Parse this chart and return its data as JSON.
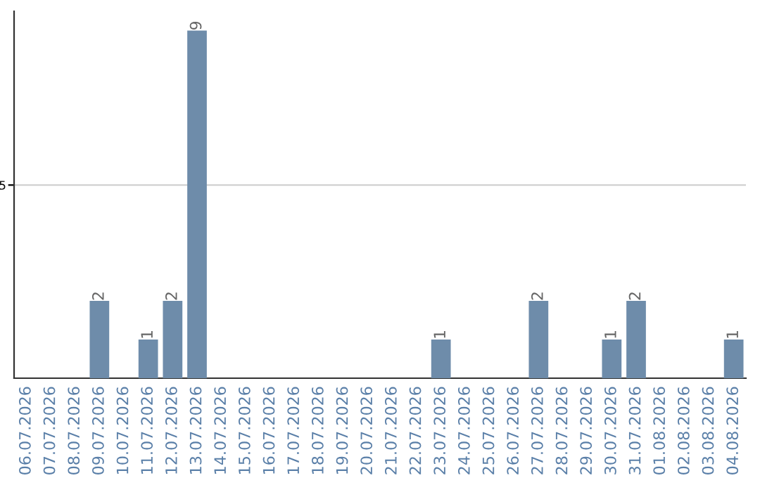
{
  "chart_data": {
    "type": "bar",
    "categories": [
      "06.07.2026",
      "07.07.2026",
      "08.07.2026",
      "09.07.2026",
      "10.07.2026",
      "11.07.2026",
      "12.07.2026",
      "13.07.2026",
      "14.07.2026",
      "15.07.2026",
      "16.07.2026",
      "17.07.2026",
      "18.07.2026",
      "19.07.2026",
      "20.07.2026",
      "21.07.2026",
      "22.07.2026",
      "23.07.2026",
      "24.07.2026",
      "25.07.2026",
      "26.07.2026",
      "27.07.2026",
      "28.07.2026",
      "29.07.2026",
      "30.07.2026",
      "31.07.2026",
      "01.08.2026",
      "02.08.2026",
      "03.08.2026",
      "04.08.2026"
    ],
    "values": [
      0,
      0,
      0,
      2,
      0,
      1,
      2,
      9,
      0,
      0,
      0,
      0,
      0,
      0,
      0,
      0,
      0,
      1,
      0,
      0,
      0,
      2,
      0,
      0,
      1,
      2,
      0,
      0,
      0,
      1
    ],
    "value_labels": [
      null,
      null,
      null,
      "2",
      null,
      "1",
      "2",
      "9",
      null,
      null,
      null,
      null,
      null,
      null,
      null,
      null,
      null,
      "1",
      null,
      null,
      null,
      "2",
      null,
      null,
      "1",
      "2",
      null,
      null,
      null,
      "1"
    ],
    "color": "#6e8caa",
    "ylim": [
      0,
      9.5
    ],
    "yticks": [
      5
    ],
    "grid": "y"
  }
}
